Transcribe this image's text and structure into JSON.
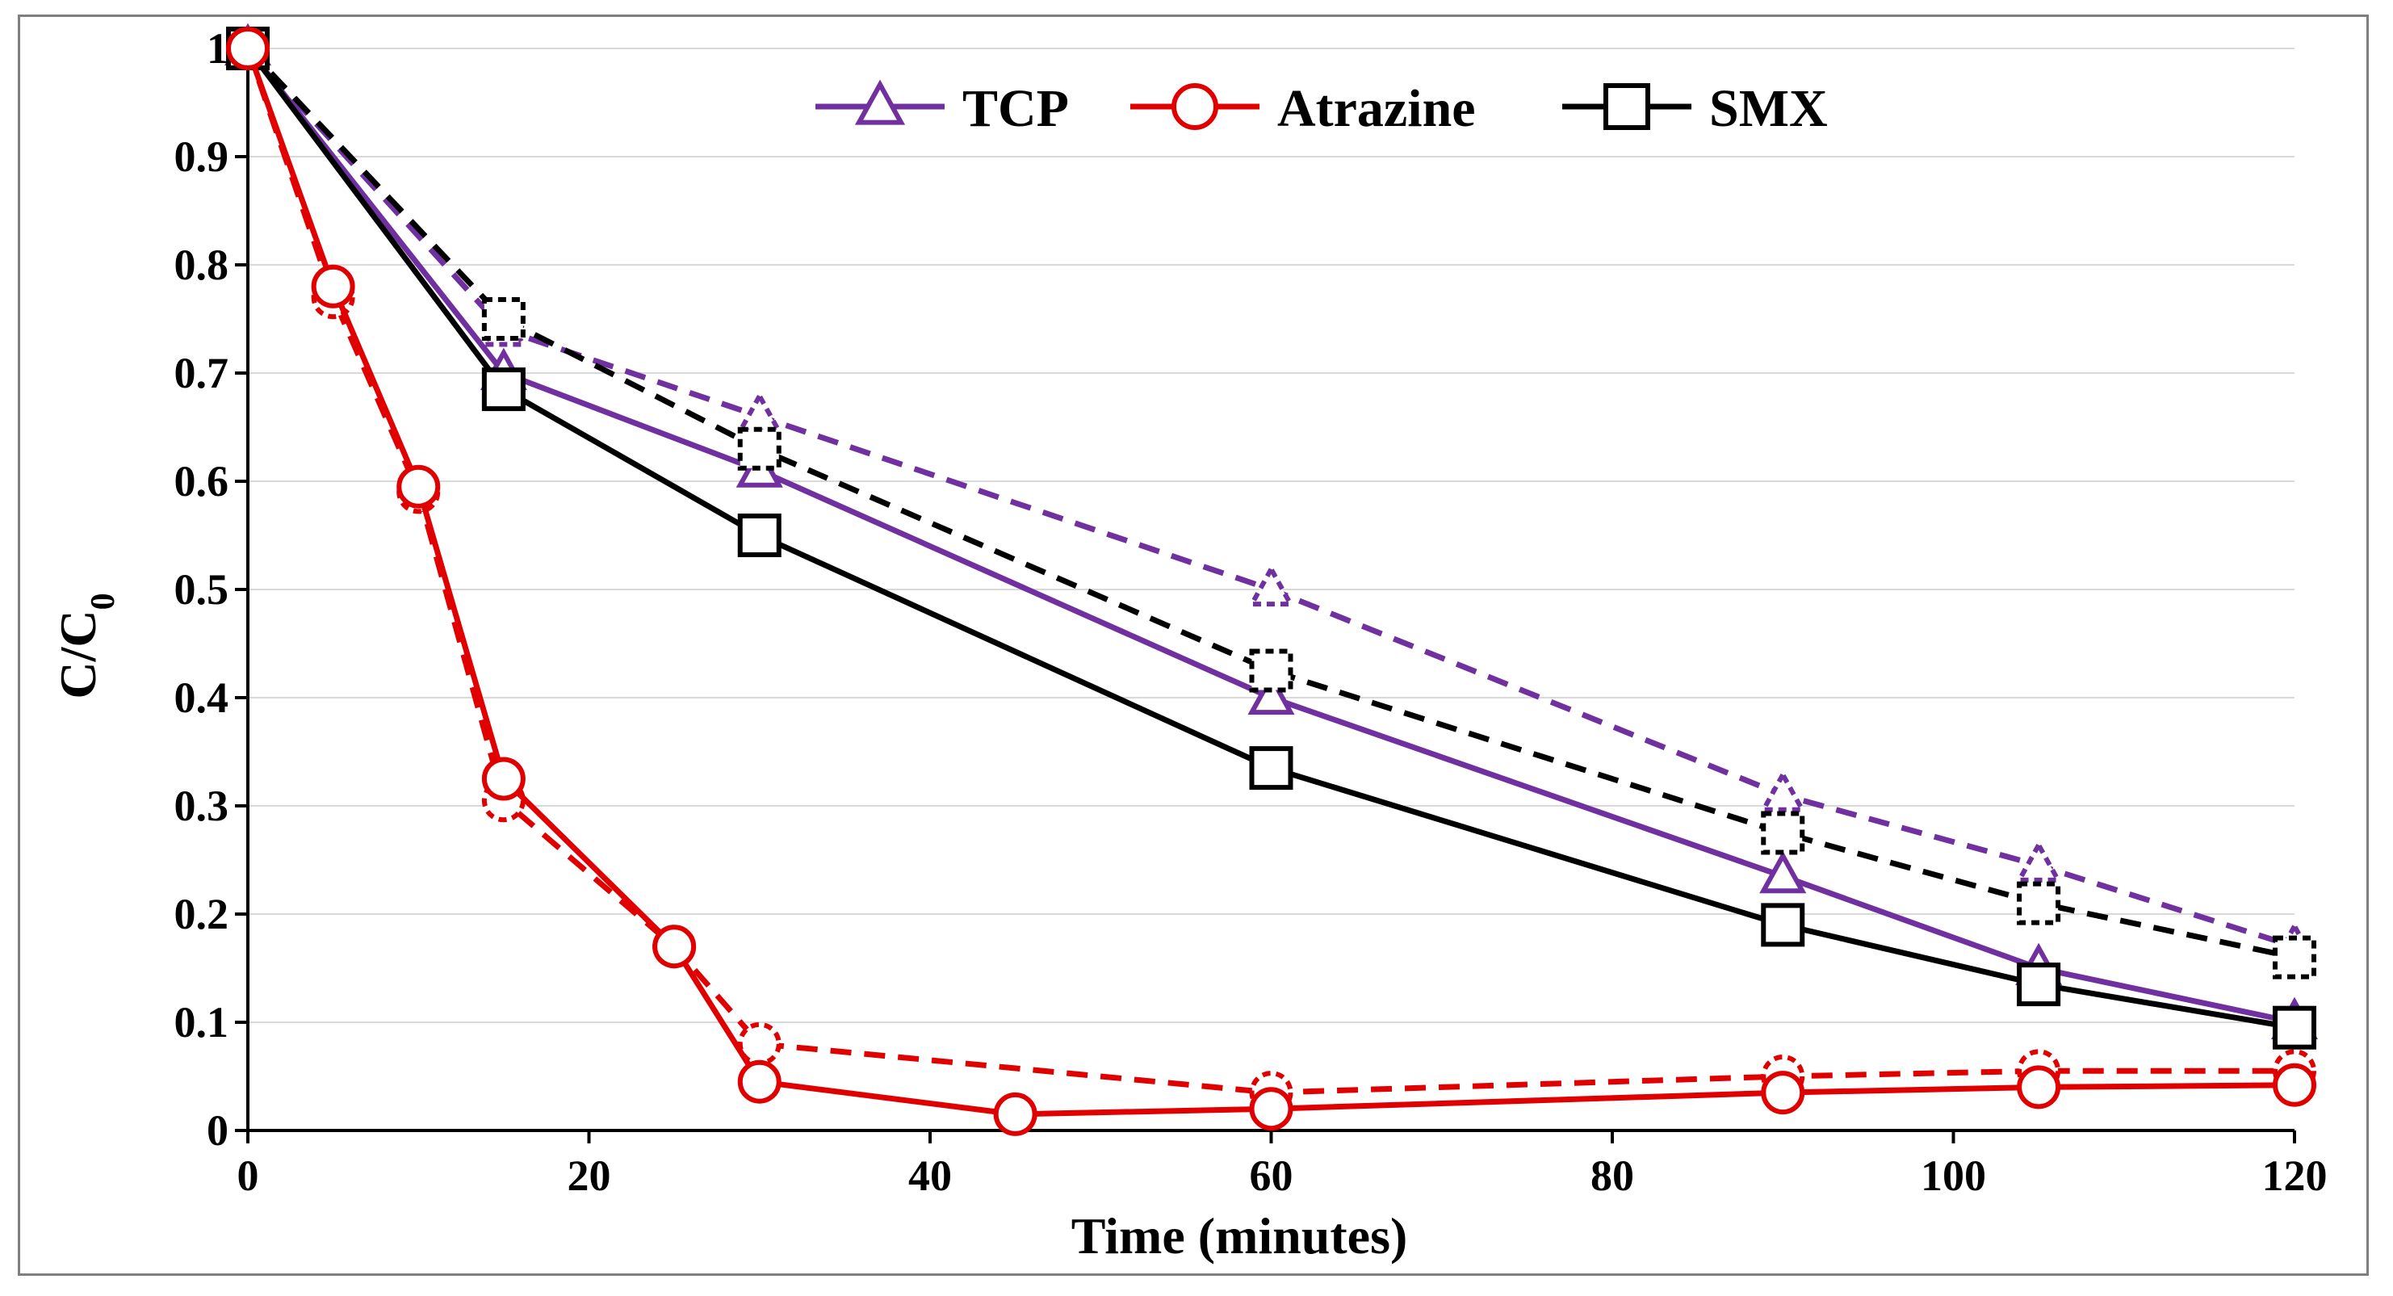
{
  "chart_data": {
    "type": "line",
    "title": "",
    "xlabel": "Time (minutes)",
    "ylabel_main": "C/C",
    "ylabel_sub": "0",
    "xlim": [
      0,
      120
    ],
    "ylim": [
      0,
      1
    ],
    "x_ticks": [
      "0",
      "20",
      "40",
      "60",
      "80",
      "100",
      "120"
    ],
    "y_ticks": [
      "0",
      "0.1",
      "0.2",
      "0.3",
      "0.4",
      "0.5",
      "0.6",
      "0.7",
      "0.8",
      "0.9",
      "1"
    ],
    "grid": "horizontal",
    "legend_position": "top-center",
    "legend": [
      {
        "label": "TCP",
        "marker": "triangle",
        "color": "#7030a0"
      },
      {
        "label": "Atrazine",
        "marker": "circle",
        "color": "#e00000"
      },
      {
        "label": "SMX",
        "marker": "square",
        "color": "#000000"
      }
    ],
    "series": [
      {
        "name": "TCP",
        "style": "dashed",
        "marker": "triangle",
        "color": "#7030a0",
        "x": [
          0,
          15,
          30,
          60,
          90,
          105,
          120
        ],
        "y": [
          1,
          0.74,
          0.66,
          0.5,
          0.31,
          0.245,
          0.17
        ]
      },
      {
        "name": "TCP",
        "style": "solid",
        "marker": "triangle",
        "color": "#7030a0",
        "x": [
          0,
          15,
          30,
          60,
          90,
          105,
          120
        ],
        "y": [
          1,
          0.7,
          0.61,
          0.4,
          0.235,
          0.15,
          0.1
        ]
      },
      {
        "name": "SMX",
        "style": "dashed",
        "marker": "square",
        "color": "#000000",
        "x": [
          0,
          15,
          30,
          60,
          90,
          105,
          120
        ],
        "y": [
          1,
          0.75,
          0.63,
          0.425,
          0.275,
          0.21,
          0.16
        ]
      },
      {
        "name": "SMX",
        "style": "solid",
        "marker": "square",
        "color": "#000000",
        "x": [
          0,
          15,
          30,
          60,
          90,
          105,
          120
        ],
        "y": [
          1,
          0.685,
          0.55,
          0.335,
          0.19,
          0.135,
          0.095
        ]
      },
      {
        "name": "Atrazine",
        "style": "dashed",
        "marker": "circle",
        "color": "#e00000",
        "x": [
          0,
          5,
          10,
          15,
          25,
          30,
          60,
          90,
          105,
          120
        ],
        "y": [
          1,
          0.77,
          0.59,
          0.305,
          0.17,
          0.08,
          0.035,
          0.05,
          0.055,
          0.055
        ]
      },
      {
        "name": "Atrazine",
        "style": "solid",
        "marker": "circle",
        "color": "#e00000",
        "x": [
          0,
          5,
          10,
          15,
          25,
          30,
          45,
          60,
          90,
          105,
          120
        ],
        "y": [
          1,
          0.78,
          0.595,
          0.325,
          0.17,
          0.045,
          0.015,
          0.02,
          0.035,
          0.04,
          0.042
        ]
      }
    ]
  }
}
